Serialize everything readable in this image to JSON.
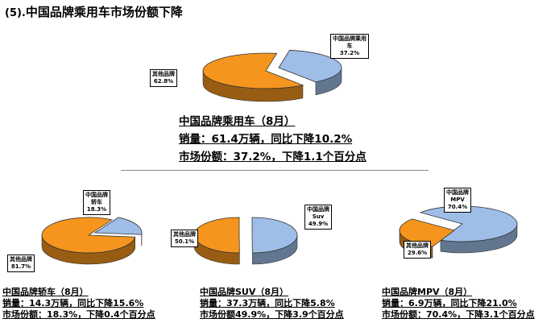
{
  "title_prefix": "(5).",
  "title_main": "中国品牌乘用车市场份额下降",
  "chart_data": [
    {
      "type": "pie",
      "name": "main",
      "slices": [
        {
          "label": "中国品牌乘用车",
          "value": 37.2,
          "value_text": "37.2%",
          "color": "#9ebee8"
        },
        {
          "label": "其他品牌",
          "value": 62.8,
          "value_text": "62.8%",
          "color": "#f5951e"
        }
      ]
    },
    {
      "type": "pie",
      "name": "jiaoche",
      "slices": [
        {
          "label": "中国品牌轿车",
          "value": 18.3,
          "value_text": "18.3%",
          "color": "#9ebee8"
        },
        {
          "label": "其他品牌",
          "value": 81.7,
          "value_text": "81.7%",
          "color": "#f5951e"
        }
      ]
    },
    {
      "type": "pie",
      "name": "suv",
      "slices": [
        {
          "label": "中国品牌Suv",
          "value": 49.9,
          "value_text": "49.9%",
          "color": "#9ebee8"
        },
        {
          "label": "其他品牌",
          "value": 50.1,
          "value_text": "50.1%",
          "color": "#f5951e"
        }
      ]
    },
    {
      "type": "pie",
      "name": "mpv",
      "slices": [
        {
          "label": "中国品牌MPV",
          "value": 70.4,
          "value_text": "70.4%",
          "color": "#9ebee8"
        },
        {
          "label": "其他品牌",
          "value": 29.6,
          "value_text": "29.6%",
          "color": "#f5951e"
        }
      ]
    }
  ],
  "labels": {
    "main_cn": "中国品牌乘用\n车\n37.2%",
    "main_other": "其他品牌\n62.8%",
    "jiao_cn": "中国品牌\n轿车\n18.3%",
    "jiao_other": "其他品牌\n81.7%",
    "suv_cn": "中国品牌\nSuv\n49.9%",
    "suv_other": "其他品牌\n50.1%",
    "mpv_cn": "中国品牌\nMPV\n70.4%",
    "mpv_other": "其他品牌\n29.6%"
  },
  "main_text": {
    "line1": "中国品牌乘用车（8月）",
    "line2": "销量：61.4万辆，同比下降10.2%",
    "line3": "市场份额：37.2%，下降1.1个百分点"
  },
  "jiao_text": {
    "line1": "中国品牌轿车（8月）",
    "line2": "销量：14.3万辆，同比下降15.6%",
    "line3": "市场份额：18.3%，下降0.4个百分点"
  },
  "suv_text": {
    "line1": "中国品牌SUV（8月）",
    "line2": "销量：37.3万辆，同比下降5.8%",
    "line3": "市场份额49.9%，下降3.9个百分点"
  },
  "mpv_text": {
    "line1": "中国品牌MPV（8月）",
    "line2": "销量：6.9万辆，同比下降21.0%",
    "line3": "市场份额：70.4%，下降3.1个百分点"
  }
}
